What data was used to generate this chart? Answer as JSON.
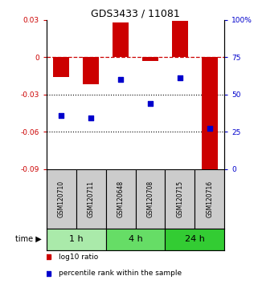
{
  "title": "GDS3433 / 11081",
  "samples": [
    "GSM120710",
    "GSM120711",
    "GSM120648",
    "GSM120708",
    "GSM120715",
    "GSM120716"
  ],
  "time_groups": [
    {
      "label": "1 h",
      "indices": [
        0,
        1
      ],
      "color": "#aaeaaa"
    },
    {
      "label": "4 h",
      "indices": [
        2,
        3
      ],
      "color": "#66dd66"
    },
    {
      "label": "24 h",
      "indices": [
        4,
        5
      ],
      "color": "#33cc33"
    }
  ],
  "log10_ratio": [
    -0.016,
    -0.022,
    0.028,
    -0.003,
    0.029,
    -0.095
  ],
  "percentile_rank": [
    36,
    34,
    60,
    44,
    61,
    27
  ],
  "left_ylim": [
    -0.09,
    0.03
  ],
  "right_ylim": [
    0,
    100
  ],
  "left_yticks": [
    -0.09,
    -0.06,
    -0.03,
    0,
    0.03
  ],
  "right_yticks": [
    0,
    25,
    50,
    75,
    100
  ],
  "left_ytick_labels": [
    "-0.09",
    "-0.06",
    "-0.03",
    "0",
    "0.03"
  ],
  "right_ytick_labels": [
    "0",
    "25",
    "50",
    "75",
    "100%"
  ],
  "bar_color": "#cc0000",
  "dot_color": "#0000cc",
  "sample_box_color": "#cccccc",
  "legend_items": [
    "log10 ratio",
    "percentile rank within the sample"
  ],
  "bar_width": 0.55
}
